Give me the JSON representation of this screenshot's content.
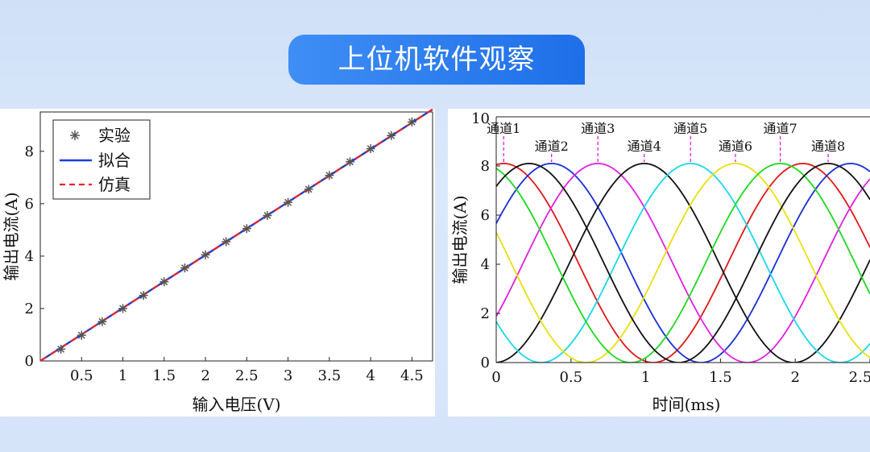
{
  "header": {
    "title": "上位机软件观察"
  },
  "chart_data": [
    {
      "type": "line",
      "xlabel": "输入电压(V)",
      "ylabel": "输出电流(A)",
      "xlim": [
        0,
        4.75
      ],
      "ylim": [
        0,
        9.5
      ],
      "xticks": [
        "0.5",
        "1",
        "1.5",
        "2",
        "2.5",
        "3",
        "3.5",
        "4",
        "4.5"
      ],
      "yticks": [
        "0",
        "2",
        "4",
        "6",
        "8"
      ],
      "legend_position": "top-left",
      "series": [
        {
          "name": "实验",
          "style": "asterisk",
          "color": "#555555",
          "x": [
            0.25,
            0.5,
            0.75,
            1.0,
            1.25,
            1.5,
            1.75,
            2.0,
            2.25,
            2.5,
            2.75,
            3.0,
            3.25,
            3.5,
            3.75,
            4.0,
            4.25,
            4.5
          ],
          "y": [
            0.45,
            0.98,
            1.5,
            2.0,
            2.5,
            3.02,
            3.55,
            4.05,
            4.55,
            5.05,
            5.55,
            6.05,
            6.55,
            7.08,
            7.6,
            8.1,
            8.6,
            9.12
          ]
        },
        {
          "name": "拟合",
          "style": "solid",
          "color": "#1a3fd9",
          "x": [
            0,
            4.75
          ],
          "y": [
            0,
            9.6
          ]
        },
        {
          "name": "仿真",
          "style": "dashed",
          "color": "#e8262a",
          "x": [
            0,
            4.75
          ],
          "y": [
            0,
            9.6
          ]
        }
      ]
    },
    {
      "type": "line",
      "xlabel": "时间(ms)",
      "ylabel": "输出电流(A)",
      "xlim": [
        0,
        2.5
      ],
      "ylim": [
        0,
        10
      ],
      "xticks": [
        "0",
        "0.5",
        "1",
        "1.5",
        "2",
        "2.5"
      ],
      "yticks": [
        "0",
        "2",
        "4",
        "6",
        "8",
        "10"
      ],
      "period_ms": 2.0,
      "amplitude": 8.1,
      "series": [
        {
          "name": "通道1",
          "color": "#e01818",
          "peak_ms": 0.05
        },
        {
          "name": "通道2",
          "color": "#1a2fd6",
          "peak_ms": 0.37
        },
        {
          "name": "通道3",
          "color": "#e020e0",
          "peak_ms": 0.68
        },
        {
          "name": "通道4",
          "color": "#111111",
          "peak_ms": 0.99
        },
        {
          "name": "通道5",
          "color": "#1ad8e8",
          "peak_ms": 1.3
        },
        {
          "name": "通道6",
          "color": "#e8e010",
          "peak_ms": 1.6
        },
        {
          "name": "通道7",
          "color": "#20d820",
          "peak_ms": 1.9
        },
        {
          "name": "通道8",
          "color": "#111111",
          "peak_ms": 2.22
        }
      ]
    }
  ]
}
